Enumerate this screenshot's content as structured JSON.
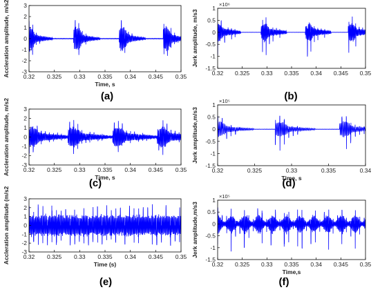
{
  "chart_data": [
    {
      "id": "a",
      "type": "line",
      "caption": "(a)",
      "xlabel": "Time, s",
      "ylabel": "Accleration amplitude, m/s2",
      "xlim": [
        0.32,
        0.35
      ],
      "ylim": [
        -3,
        3
      ],
      "y_exponent": "",
      "xticks": [
        0.32,
        0.325,
        0.33,
        0.335,
        0.34,
        0.345,
        0.35
      ],
      "xtick_labels": [
        "0.32",
        "0.325",
        "0.33",
        "0.335",
        "0.34",
        "0.345",
        "0.35"
      ],
      "yticks": [
        -3,
        -2,
        -1,
        0,
        1,
        2,
        3
      ],
      "ytick_labels": [
        "-3",
        "-2",
        "-1",
        "0",
        "1",
        "2",
        "3"
      ],
      "color": "#0000ff",
      "grid": false,
      "signal": {
        "kind": "bursts",
        "burst_starts": [
          0.3195,
          0.3288,
          0.3378,
          0.3465
        ],
        "burst_duration": 0.0052,
        "peak": 2.7,
        "decay": 2.2,
        "spike_period": 0.0007,
        "carrier_period": 0.00018,
        "baseline": 0.02
      }
    },
    {
      "id": "b",
      "type": "line",
      "caption": "(b)",
      "xlabel": "",
      "ylabel": "Jerk amplitude, m/s3",
      "xlim": [
        0.32,
        0.35
      ],
      "ylim": [
        -1.5,
        1.0
      ],
      "y_exponent": "×10⁶",
      "xticks": [
        0.32,
        0.325,
        0.33,
        0.335,
        0.34,
        0.345,
        0.35
      ],
      "xtick_labels": [
        "0.32",
        "0.325",
        "0.33",
        "0.335",
        "0.34",
        "0.345",
        "0.35"
      ],
      "yticks": [
        -1.5,
        -1,
        -0.5,
        0,
        0.5,
        1
      ],
      "ytick_labels": [
        "-1.5",
        "-1",
        "-0.5",
        "0",
        "0.5",
        "1"
      ],
      "color": "#0000ff",
      "grid": false,
      "signal": {
        "kind": "bursts",
        "burst_starts": [
          0.3195,
          0.3288,
          0.3378,
          0.3465
        ],
        "burst_duration": 0.0052,
        "peak": 0.85,
        "neg_peak": 1.4,
        "decay": 1.5,
        "spike_period": 0.0007,
        "carrier_period": 0.00018,
        "baseline": 0.01
      }
    },
    {
      "id": "c",
      "type": "line",
      "caption": "(c)",
      "xlabel": "Time, s",
      "ylabel": "Accleration amplitude, m/s2",
      "xlim": [
        0.32,
        0.35
      ],
      "ylim": [
        -3,
        3
      ],
      "y_exponent": "",
      "xticks": [
        0.32,
        0.325,
        0.33,
        0.335,
        0.34,
        0.345,
        0.35
      ],
      "xtick_labels": [
        "0.32",
        "0.325",
        "0.33",
        "0.335",
        "0.34",
        "0.345",
        "0.35"
      ],
      "yticks": [
        -3,
        -2,
        -1,
        0,
        1,
        2,
        3
      ],
      "ytick_labels": [
        "-3",
        "-2",
        "-1",
        "0",
        "1",
        "2",
        "3"
      ],
      "color": "#0000ff",
      "grid": false,
      "signal": {
        "kind": "bursts",
        "burst_starts": [
          0.3195,
          0.3277,
          0.3365,
          0.3453
        ],
        "burst_duration": 0.0078,
        "peak": 2.4,
        "decay": 1.4,
        "spike_period": 0.0008,
        "carrier_period": 0.00018,
        "baseline": 0.1
      }
    },
    {
      "id": "d",
      "type": "line",
      "caption": "(d)",
      "xlabel": "Time, s",
      "ylabel": "Jerk amplitude,m/s3",
      "xlim": [
        0.32,
        0.34
      ],
      "ylim": [
        -1.5,
        1.0
      ],
      "y_exponent": "×10⁵",
      "xticks": [
        0.32,
        0.325,
        0.33,
        0.335,
        0.34
      ],
      "xtick_labels": [
        "0.32",
        "0.325",
        "0.33",
        "0.335",
        "0.34"
      ],
      "yticks": [
        -1.5,
        -1,
        -0.5,
        0,
        0.5,
        1
      ],
      "ytick_labels": [
        "-1.5",
        "-1",
        "-0.5",
        "0",
        "0.5",
        "1"
      ],
      "color": "#0000ff",
      "grid": false,
      "signal": {
        "kind": "bursts",
        "burst_starts": [
          0.3195,
          0.3278,
          0.3365
        ],
        "burst_duration": 0.0054,
        "peak": 0.75,
        "neg_peak": 1.3,
        "decay": 2.0,
        "spike_period": 0.0006,
        "carrier_period": 0.00016,
        "baseline": 0.02
      }
    },
    {
      "id": "e",
      "type": "line",
      "caption": "(e)",
      "xlabel": "Time (s)",
      "ylabel": "Accleration amplitude (m/s2",
      "xlim": [
        0.32,
        0.35
      ],
      "ylim": [
        -3,
        3
      ],
      "y_exponent": "",
      "xticks": [
        0.32,
        0.325,
        0.33,
        0.335,
        0.34,
        0.345,
        0.35
      ],
      "xtick_labels": [
        "0.32",
        "0.325",
        "0.33",
        "0.335",
        "0.34",
        "0.345",
        "0.35"
      ],
      "yticks": [
        -3,
        -2,
        -1,
        0,
        1,
        2,
        3
      ],
      "ytick_labels": [
        "-3",
        "-2",
        "-1",
        "0",
        "1",
        "2",
        "3"
      ],
      "color": "#0000ff",
      "grid": false,
      "signal": {
        "kind": "continuous",
        "peak": 2.6,
        "spike_period": 0.0009,
        "carrier_period": 0.00018,
        "floor": 0.9
      }
    },
    {
      "id": "f",
      "type": "line",
      "caption": "(f)",
      "xlabel": "Time,s",
      "ylabel": "Jerk amplitude,m/s3",
      "xlim": [
        0.32,
        0.35
      ],
      "ylim": [
        -1.5,
        1.0
      ],
      "y_exponent": "×10⁵",
      "xticks": [
        0.32,
        0.325,
        0.33,
        0.335,
        0.34,
        0.345,
        0.35
      ],
      "xtick_labels": [
        "0.32",
        "0.325",
        "0.33",
        "0.335",
        "0.34",
        "0.345",
        "0.35"
      ],
      "yticks": [
        -1.5,
        -1,
        -0.5,
        0,
        0.5,
        1
      ],
      "ytick_labels": [
        "-1.5",
        "-1",
        "-0.5",
        "0",
        "0.5",
        "1"
      ],
      "color": "#0000ff",
      "grid": false,
      "signal": {
        "kind": "continuous",
        "peak": 0.85,
        "neg_peak": 1.35,
        "spike_period": 0.0009,
        "carrier_period": 0.00018,
        "floor": 0.25
      }
    }
  ]
}
